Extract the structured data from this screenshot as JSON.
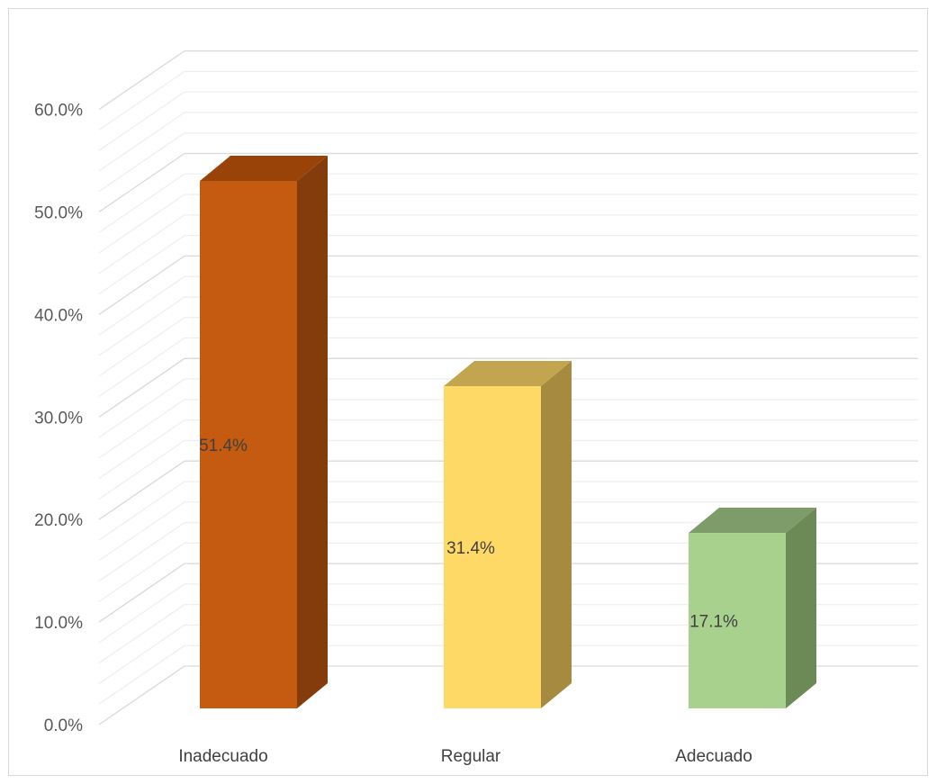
{
  "chart_data": {
    "type": "bar",
    "style": "3d-column",
    "categories": [
      "Inadecuado",
      "Regular",
      "Adecuado"
    ],
    "values": [
      51.4,
      31.4,
      17.1
    ],
    "value_labels": [
      "51.4%",
      "31.4%",
      "17.1%"
    ],
    "colors": {
      "front": [
        "#C55A11",
        "#FFD966",
        "#A9D18E"
      ],
      "side": [
        "#843C0C",
        "#A58A3F",
        "#6C8A56"
      ],
      "top": [
        "#9A4309",
        "#C2A54E",
        "#7D9C6A"
      ]
    },
    "ylim": [
      0,
      60
    ],
    "yticks": [
      0,
      10,
      20,
      30,
      40,
      50,
      60
    ],
    "ytick_labels": [
      "0.0%",
      "10.0%",
      "20.0%",
      "30.0%",
      "40.0%",
      "50.0%",
      "60.0%"
    ],
    "minor_step": 2,
    "grid": true,
    "legend": "none",
    "title": "",
    "xlabel": "",
    "ylabel": ""
  }
}
